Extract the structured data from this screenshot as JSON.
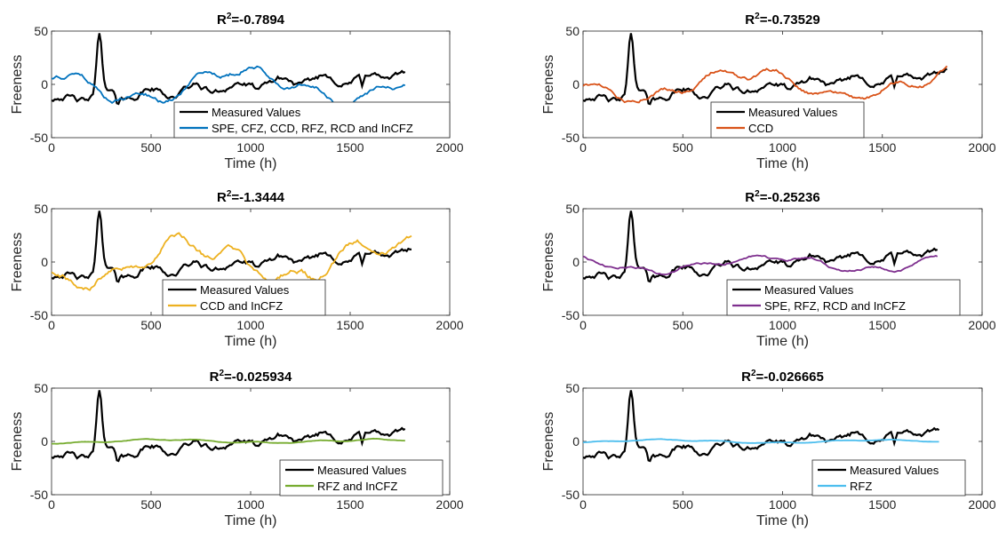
{
  "chart_data": [
    {
      "type": "line",
      "title_base": "R",
      "title_sup": "2",
      "title_value": "=-0.7894",
      "xlabel": "Time (h)",
      "ylabel": "Freeness",
      "xlim": [
        0,
        2000
      ],
      "ylim": [
        -50,
        50
      ],
      "xticks": [
        "0",
        "500",
        "1000",
        "1500",
        "2000"
      ],
      "yticks": [
        "-50",
        "0",
        "50"
      ],
      "legend_position": "bottom-right",
      "series": [
        {
          "name": "Measured Values",
          "color": "#000000"
        },
        {
          "name": "SPE, CFZ, CCD, RFZ, RCD and InCFZ",
          "color": "#0072BD"
        }
      ],
      "data_x_max": 1780,
      "model_amp": 16,
      "model_seed": 3
    },
    {
      "type": "line",
      "title_base": "R",
      "title_sup": "2",
      "title_value": "=-0.73529",
      "xlabel": "Time (h)",
      "ylabel": "Freeness",
      "xlim": [
        0,
        2000
      ],
      "ylim": [
        -50,
        50
      ],
      "xticks": [
        "0",
        "500",
        "1000",
        "1500",
        "2000"
      ],
      "yticks": [
        "-50",
        "0",
        "50"
      ],
      "legend_position": "bottom-right",
      "series": [
        {
          "name": "Measured Values",
          "color": "#000000"
        },
        {
          "name": "CCD",
          "color": "#D95319"
        }
      ],
      "data_x_max": 1830,
      "model_amp": 14,
      "model_seed": 7
    },
    {
      "type": "line",
      "title_base": "R",
      "title_sup": "2",
      "title_value": "=-1.3444",
      "xlabel": "Time (h)",
      "ylabel": "Freeness",
      "xlim": [
        0,
        2000
      ],
      "ylim": [
        -50,
        50
      ],
      "xticks": [
        "0",
        "500",
        "1000",
        "1500",
        "2000"
      ],
      "yticks": [
        "-50",
        "0",
        "50"
      ],
      "legend_position": "bottom-left",
      "series": [
        {
          "name": "Measured Values",
          "color": "#000000"
        },
        {
          "name": "CCD and InCFZ",
          "color": "#EDB120"
        }
      ],
      "data_x_max": 1815,
      "model_amp": 22,
      "model_seed": 11
    },
    {
      "type": "line",
      "title_base": "R",
      "title_sup": "2",
      "title_value": "=-0.25236",
      "xlabel": "Time (h)",
      "ylabel": "Freeness",
      "xlim": [
        0,
        2000
      ],
      "ylim": [
        -50,
        50
      ],
      "xticks": [
        "0",
        "500",
        "1000",
        "1500",
        "2000"
      ],
      "yticks": [
        "-50",
        "0",
        "50"
      ],
      "legend_position": "bottom-right",
      "series": [
        {
          "name": "Measured Values",
          "color": "#000000"
        },
        {
          "name": "SPE, RFZ, RCD and InCFZ",
          "color": "#7E2F8E"
        }
      ],
      "data_x_max": 1780,
      "model_amp": 8,
      "model_seed": 5
    },
    {
      "type": "line",
      "title_base": "R",
      "title_sup": "2",
      "title_value": "=-0.025934",
      "xlabel": "Time (h)",
      "ylabel": "Freeness",
      "xlim": [
        0,
        2000
      ],
      "ylim": [
        -50,
        50
      ],
      "xticks": [
        "0",
        "500",
        "1000",
        "1500",
        "2000"
      ],
      "yticks": [
        "-50",
        "0",
        "50"
      ],
      "legend_position": "bottom-right",
      "series": [
        {
          "name": "Measured Values",
          "color": "#000000"
        },
        {
          "name": "RFZ and InCFZ",
          "color": "#77AC30"
        }
      ],
      "data_x_max": 1780,
      "model_amp": 2,
      "model_seed": 13
    },
    {
      "type": "line",
      "title_base": "R",
      "title_sup": "2",
      "title_value": "=-0.026665",
      "xlabel": "Time (h)",
      "ylabel": "Freeness",
      "xlim": [
        0,
        2000
      ],
      "ylim": [
        -50,
        50
      ],
      "xticks": [
        "0",
        "500",
        "1000",
        "1500",
        "2000"
      ],
      "yticks": [
        "-50",
        "0",
        "50"
      ],
      "legend_position": "bottom-right",
      "series": [
        {
          "name": "Measured Values",
          "color": "#000000"
        },
        {
          "name": "RFZ",
          "color": "#4DBEEE"
        }
      ],
      "data_x_max": 1790,
      "model_amp": 1.5,
      "model_seed": 17
    }
  ]
}
